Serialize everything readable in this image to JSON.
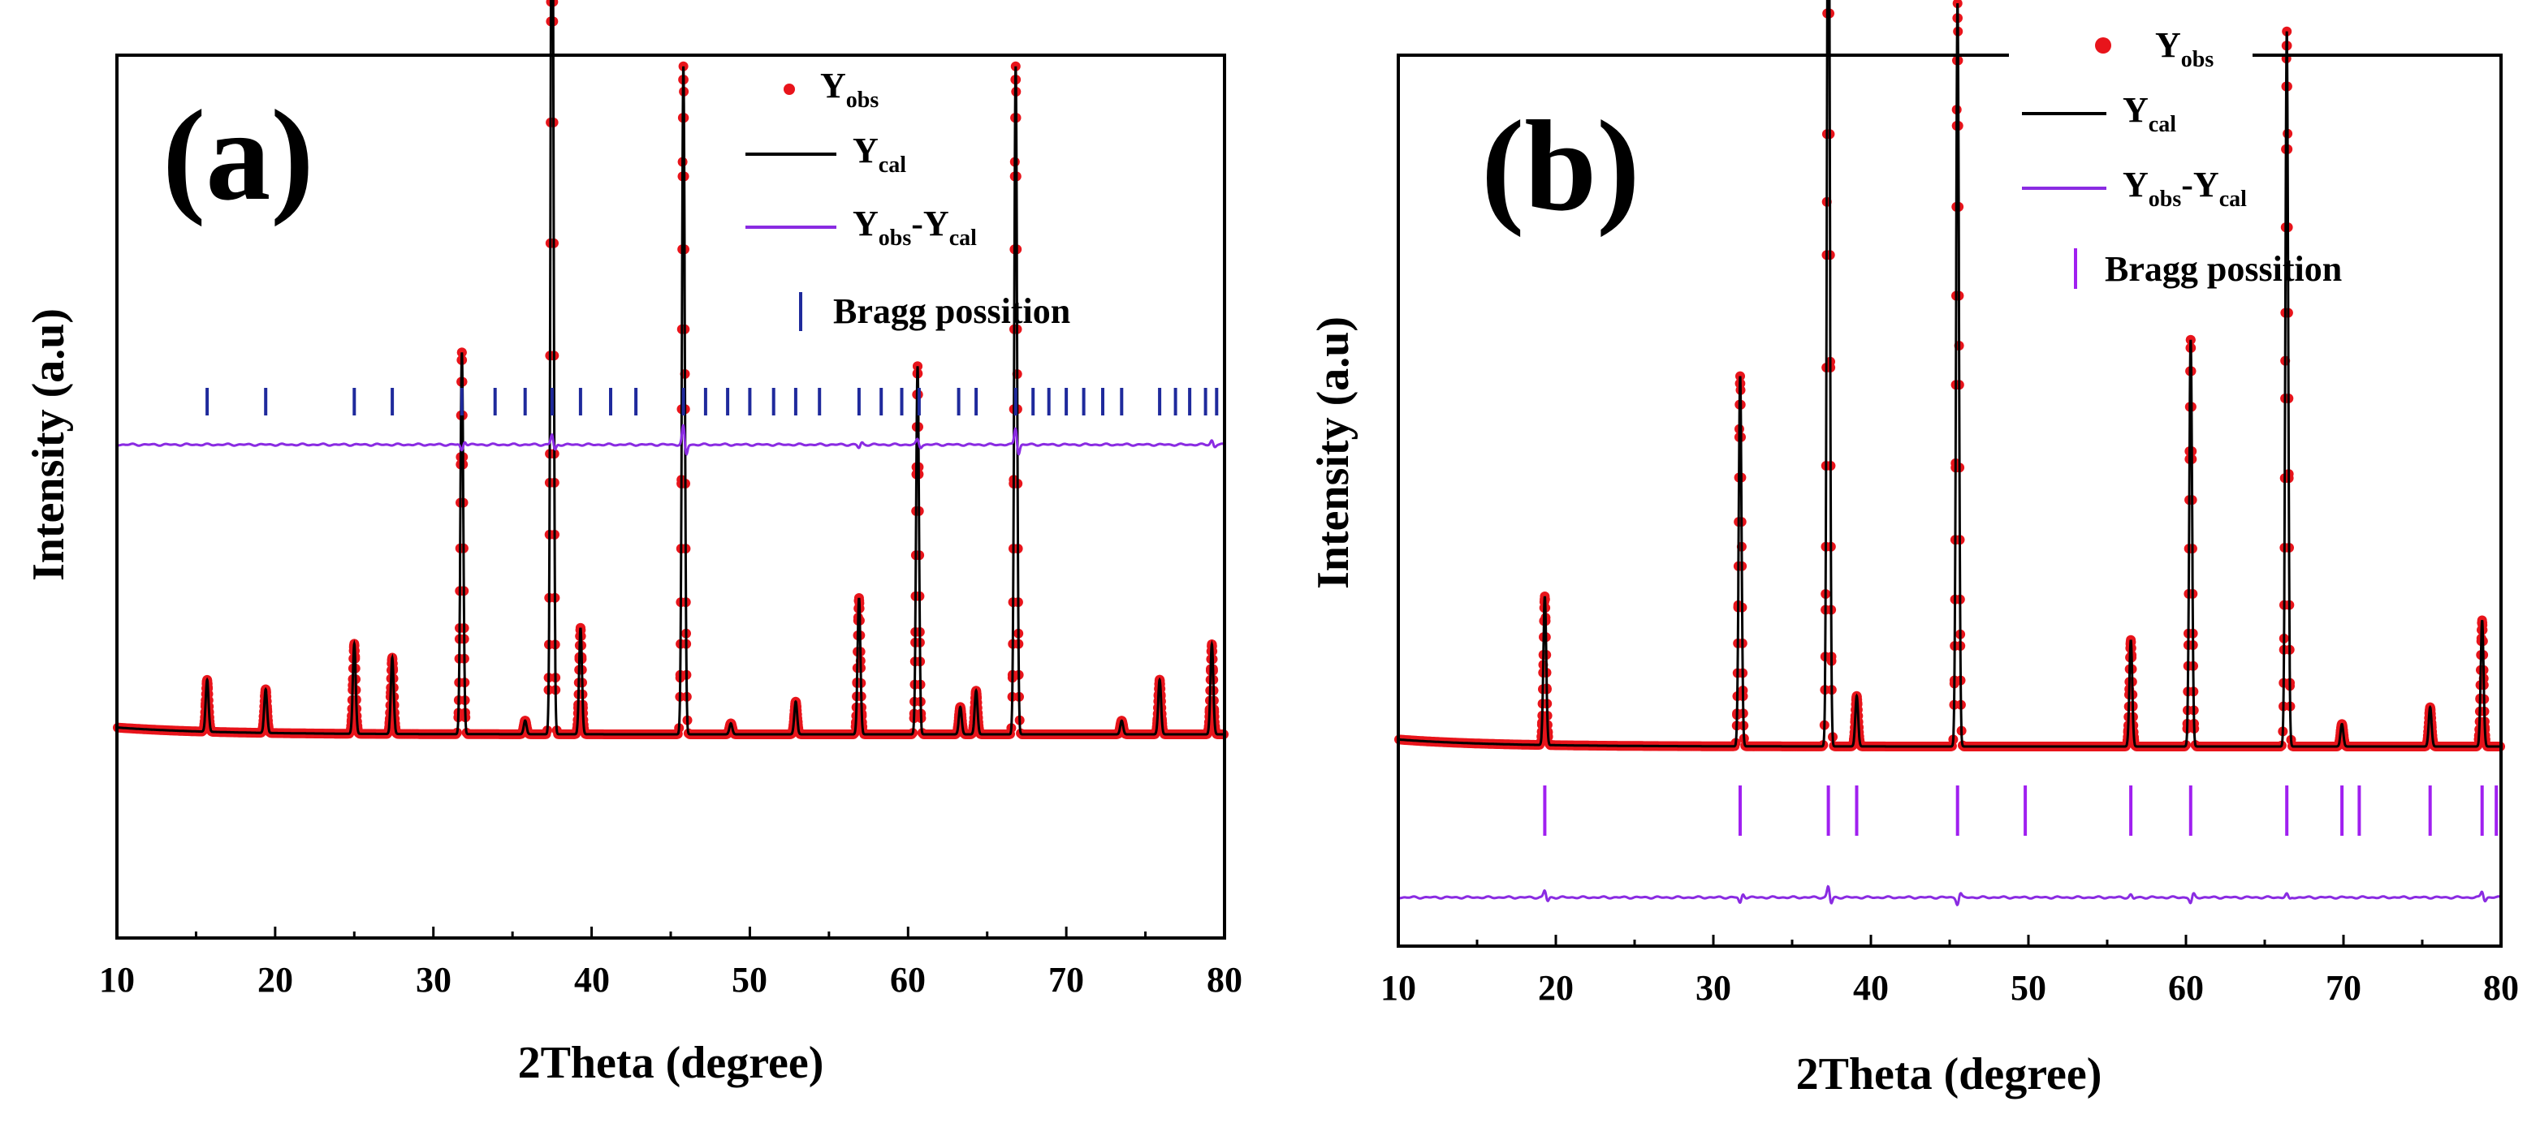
{
  "chart_data": [
    {
      "type": "line",
      "panel_label": "(a)",
      "xlabel": "2Theta (degree)",
      "ylabel": "Intensity (a.u)",
      "xlim": [
        10,
        80
      ],
      "xticks": [
        10,
        20,
        30,
        40,
        50,
        60,
        70,
        80
      ],
      "yticks_shown": false,
      "legend_location": "top-right",
      "legend": [
        {
          "main": "Y",
          "sub": "obs",
          "main2": "",
          "sub2": ""
        },
        {
          "main": "Y",
          "sub": "cal",
          "main2": "",
          "sub2": ""
        },
        {
          "main": "Y",
          "sub": "obs",
          "main2": "-Y",
          "sub2": "cal"
        },
        {
          "main": "Bragg possition",
          "sub": "",
          "main2": "",
          "sub2": ""
        }
      ],
      "colors": {
        "obs": "#e8141b",
        "cal": "#000000",
        "diff": "#8a2be2",
        "bragg": "#1f2a9c"
      },
      "baseline": 1.0,
      "peaks": [
        {
          "x": 15.7,
          "h": 1.9
        },
        {
          "x": 19.4,
          "h": 1.6
        },
        {
          "x": 25.0,
          "h": 3.3
        },
        {
          "x": 27.4,
          "h": 2.8
        },
        {
          "x": 31.8,
          "h": 14.0
        },
        {
          "x": 35.8,
          "h": 0.5
        },
        {
          "x": 37.5,
          "h": 37.0
        },
        {
          "x": 39.3,
          "h": 3.9
        },
        {
          "x": 45.8,
          "h": 24.5
        },
        {
          "x": 48.8,
          "h": 0.4
        },
        {
          "x": 52.9,
          "h": 1.2
        },
        {
          "x": 56.9,
          "h": 5.0
        },
        {
          "x": 60.6,
          "h": 13.5
        },
        {
          "x": 63.3,
          "h": 1.0
        },
        {
          "x": 64.3,
          "h": 1.6
        },
        {
          "x": 66.8,
          "h": 24.5
        },
        {
          "x": 73.5,
          "h": 0.5
        },
        {
          "x": 75.9,
          "h": 2.0
        },
        {
          "x": 79.2,
          "h": 3.3
        }
      ],
      "bragg_positions": [
        15.7,
        19.4,
        25.0,
        27.4,
        31.8,
        33.9,
        35.8,
        37.5,
        39.3,
        41.2,
        42.8,
        45.8,
        47.2,
        48.6,
        50.0,
        51.5,
        52.9,
        54.4,
        56.9,
        58.3,
        59.6,
        60.7,
        63.2,
        64.3,
        66.8,
        67.9,
        68.9,
        70.0,
        71.1,
        72.3,
        73.5,
        75.9,
        76.9,
        77.8,
        78.8,
        79.5
      ],
      "difference_spikes": [
        {
          "x": 31.8,
          "v": -0.7
        },
        {
          "x": 37.5,
          "v": 1.2
        },
        {
          "x": 45.8,
          "v": 2.2
        },
        {
          "x": 56.9,
          "v": -0.4
        },
        {
          "x": 60.6,
          "v": 0.6
        },
        {
          "x": 66.8,
          "v": 2.0
        },
        {
          "x": 79.2,
          "v": 0.5
        }
      ]
    },
    {
      "type": "line",
      "panel_label": "(b)",
      "xlabel": "2Theta (degree)",
      "ylabel": "Intensity (a.u)",
      "xlim": [
        10,
        80
      ],
      "xticks": [
        10,
        20,
        30,
        40,
        50,
        60,
        70,
        80
      ],
      "yticks_shown": false,
      "legend_location": "top-right",
      "legend": [
        {
          "main": "Y",
          "sub": "obs",
          "main2": "",
          "sub2": ""
        },
        {
          "main": "Y",
          "sub": "cal",
          "main2": "",
          "sub2": ""
        },
        {
          "main": "Y",
          "sub": "obs",
          "main2": "-Y",
          "sub2": "cal"
        },
        {
          "main": "Bragg possition",
          "sub": "",
          "main2": "",
          "sub2": ""
        }
      ],
      "colors": {
        "obs": "#e8141b",
        "cal": "#000000",
        "diff": "#8a2be2",
        "bragg": "#a020f0"
      },
      "baseline": 1.0,
      "peaks": [
        {
          "x": 19.3,
          "h": 5.3
        },
        {
          "x": 31.7,
          "h": 13.2
        },
        {
          "x": 37.3,
          "h": 36.0
        },
        {
          "x": 39.1,
          "h": 1.8
        },
        {
          "x": 45.5,
          "h": 26.5
        },
        {
          "x": 56.5,
          "h": 3.8
        },
        {
          "x": 60.3,
          "h": 14.5
        },
        {
          "x": 66.4,
          "h": 25.5
        },
        {
          "x": 69.9,
          "h": 0.8
        },
        {
          "x": 75.5,
          "h": 1.4
        },
        {
          "x": 78.8,
          "h": 4.5
        }
      ],
      "bragg_positions": [
        19.3,
        31.7,
        37.3,
        39.1,
        45.5,
        49.8,
        56.5,
        60.3,
        66.4,
        69.9,
        71.0,
        75.5,
        78.8,
        79.7
      ],
      "difference_spikes": [
        {
          "x": 19.3,
          "v": 0.8
        },
        {
          "x": 31.7,
          "v": -0.7
        },
        {
          "x": 37.3,
          "v": 1.3
        },
        {
          "x": 45.5,
          "v": -0.8
        },
        {
          "x": 56.5,
          "v": 0.3
        },
        {
          "x": 60.3,
          "v": -0.7
        },
        {
          "x": 66.4,
          "v": 0.4
        },
        {
          "x": 78.8,
          "v": 0.7
        }
      ]
    }
  ]
}
